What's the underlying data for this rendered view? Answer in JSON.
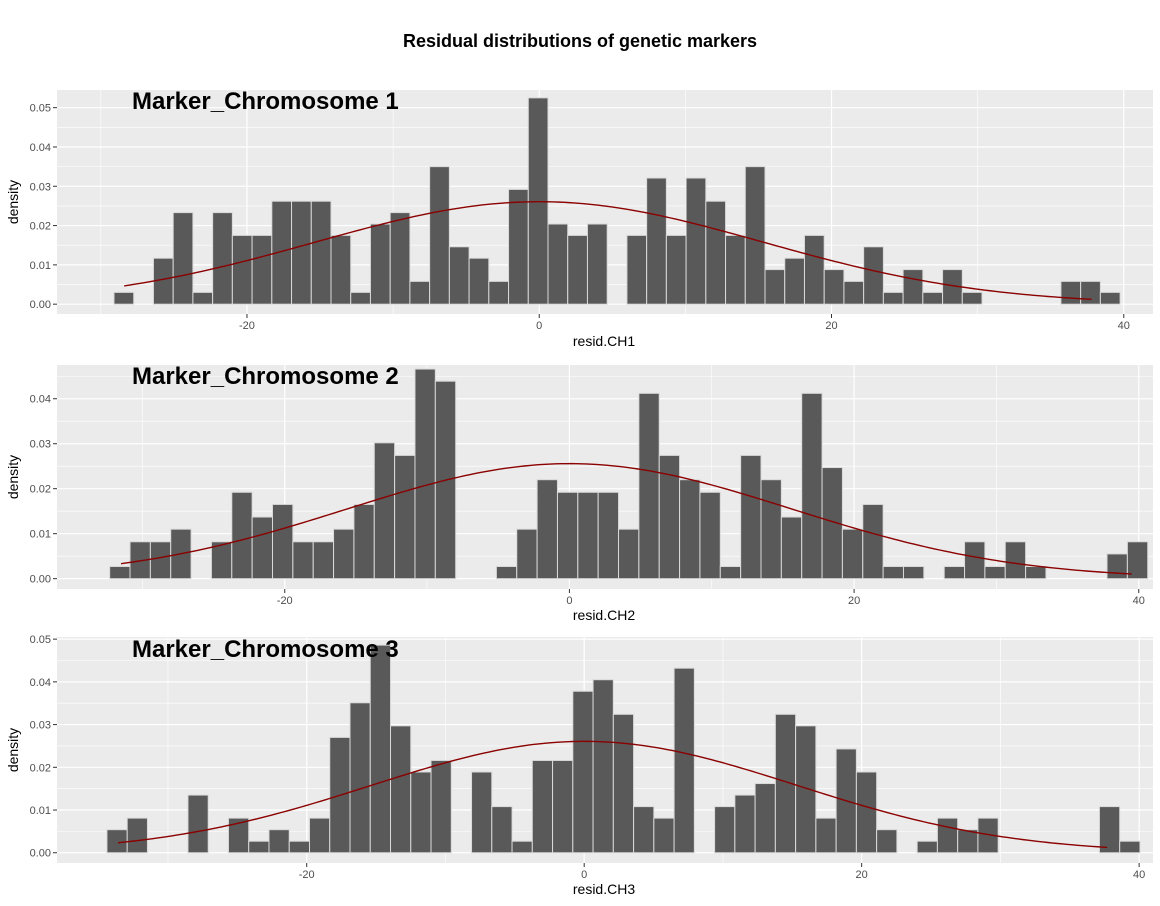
{
  "title": "Residual distributions of genetic markers",
  "colors": {
    "panel_bg": "#ebebeb",
    "grid_major": "#ffffff",
    "bar_fill": "#595959",
    "bar_stroke": "#d9d9d9",
    "curve": "#8b0000",
    "tick_text": "#4d4d4d"
  },
  "chart_data": [
    {
      "type": "bar",
      "label": "Marker_Chromosome 1",
      "xlabel": "resid.CH1",
      "ylabel": "density",
      "xlim": [
        -33,
        42
      ],
      "ylim": [
        -0.0025,
        0.0545
      ],
      "xticks": [
        -20,
        0,
        20,
        40
      ],
      "yticks": [
        0.0,
        0.01,
        0.02,
        0.03,
        0.04,
        0.05
      ],
      "ytick_labels": [
        "0.00",
        "0.01",
        "0.02",
        "0.03",
        "0.04",
        "0.05"
      ],
      "grid": true,
      "bin_start": -29.1,
      "bin_width": 1.35,
      "values": [
        0.003,
        0.0,
        0.0117,
        0.0233,
        0.003,
        0.0233,
        0.0175,
        0.0175,
        0.0262,
        0.0262,
        0.0262,
        0.0175,
        0.003,
        0.0204,
        0.0233,
        0.0058,
        0.035,
        0.0146,
        0.0117,
        0.0058,
        0.0292,
        0.0525,
        0.0204,
        0.0175,
        0.0204,
        0.0,
        0.0175,
        0.0321,
        0.0175,
        0.0321,
        0.0262,
        0.0175,
        0.035,
        0.0088,
        0.0117,
        0.0175,
        0.0088,
        0.0058,
        0.0146,
        0.003,
        0.0088,
        0.003,
        0.0088,
        0.003,
        0.0,
        0.0,
        0.0,
        0.0,
        0.0058,
        0.0058,
        0.003
      ],
      "normal_curve": {
        "mean": 0.0,
        "sd": 15.3,
        "x_range": [
          -28.4,
          37.8
        ]
      }
    },
    {
      "type": "bar",
      "label": "Marker_Chromosome 2",
      "xlabel": "resid.CH2",
      "ylabel": "density",
      "xlim": [
        -36,
        41
      ],
      "ylim": [
        -0.0023,
        0.0475
      ],
      "xticks": [
        -20,
        0,
        20,
        40
      ],
      "yticks": [
        0.0,
        0.01,
        0.02,
        0.03,
        0.04
      ],
      "ytick_labels": [
        "0.00",
        "0.01",
        "0.02",
        "0.03",
        "0.04"
      ],
      "grid": true,
      "bin_start": -32.3,
      "bin_width": 1.43,
      "values": [
        0.0027,
        0.0082,
        0.0082,
        0.011,
        0.0,
        0.0082,
        0.0192,
        0.0137,
        0.0165,
        0.0082,
        0.0082,
        0.011,
        0.0165,
        0.0302,
        0.0274,
        0.0466,
        0.0439,
        0.0,
        0.0,
        0.0027,
        0.011,
        0.022,
        0.0192,
        0.0192,
        0.0192,
        0.011,
        0.0412,
        0.0274,
        0.022,
        0.0192,
        0.0027,
        0.0274,
        0.022,
        0.0137,
        0.0412,
        0.0247,
        0.011,
        0.0165,
        0.0027,
        0.0027,
        0.0,
        0.0027,
        0.0082,
        0.0027,
        0.0082,
        0.0027,
        0.0,
        0.0,
        0.0,
        0.0055,
        0.0082
      ],
      "normal_curve": {
        "mean": 0.0,
        "sd": 15.6,
        "x_range": [
          -31.5,
          39.5
        ]
      }
    },
    {
      "type": "bar",
      "label": "Marker_Chromosome 3",
      "xlabel": "resid.CH3",
      "ylabel": "density",
      "xlim": [
        -38,
        41
      ],
      "ylim": [
        -0.0024,
        0.0505
      ],
      "xticks": [
        -20,
        0,
        20,
        40
      ],
      "yticks": [
        0.0,
        0.01,
        0.02,
        0.03,
        0.04,
        0.05
      ],
      "ytick_labels": [
        "0.00",
        "0.01",
        "0.02",
        "0.03",
        "0.04",
        "0.05"
      ],
      "grid": true,
      "bin_start": -34.4,
      "bin_width": 1.46,
      "values": [
        0.0054,
        0.0081,
        0.0,
        0.0,
        0.0135,
        0.0,
        0.0081,
        0.0027,
        0.0054,
        0.0027,
        0.0081,
        0.027,
        0.0351,
        0.0486,
        0.0297,
        0.0189,
        0.0216,
        0.0,
        0.0189,
        0.0108,
        0.0027,
        0.0216,
        0.0216,
        0.0378,
        0.0405,
        0.0324,
        0.0108,
        0.0081,
        0.0432,
        0.0,
        0.0108,
        0.0135,
        0.0162,
        0.0324,
        0.0297,
        0.0081,
        0.0243,
        0.0189,
        0.0054,
        0.0,
        0.0027,
        0.0081,
        0.0054,
        0.0081,
        0.0,
        0.0,
        0.0,
        0.0,
        0.0,
        0.0108,
        0.0027
      ],
      "normal_curve": {
        "mean": 0.0,
        "sd": 15.3,
        "x_range": [
          -33.6,
          37.7
        ]
      }
    }
  ]
}
